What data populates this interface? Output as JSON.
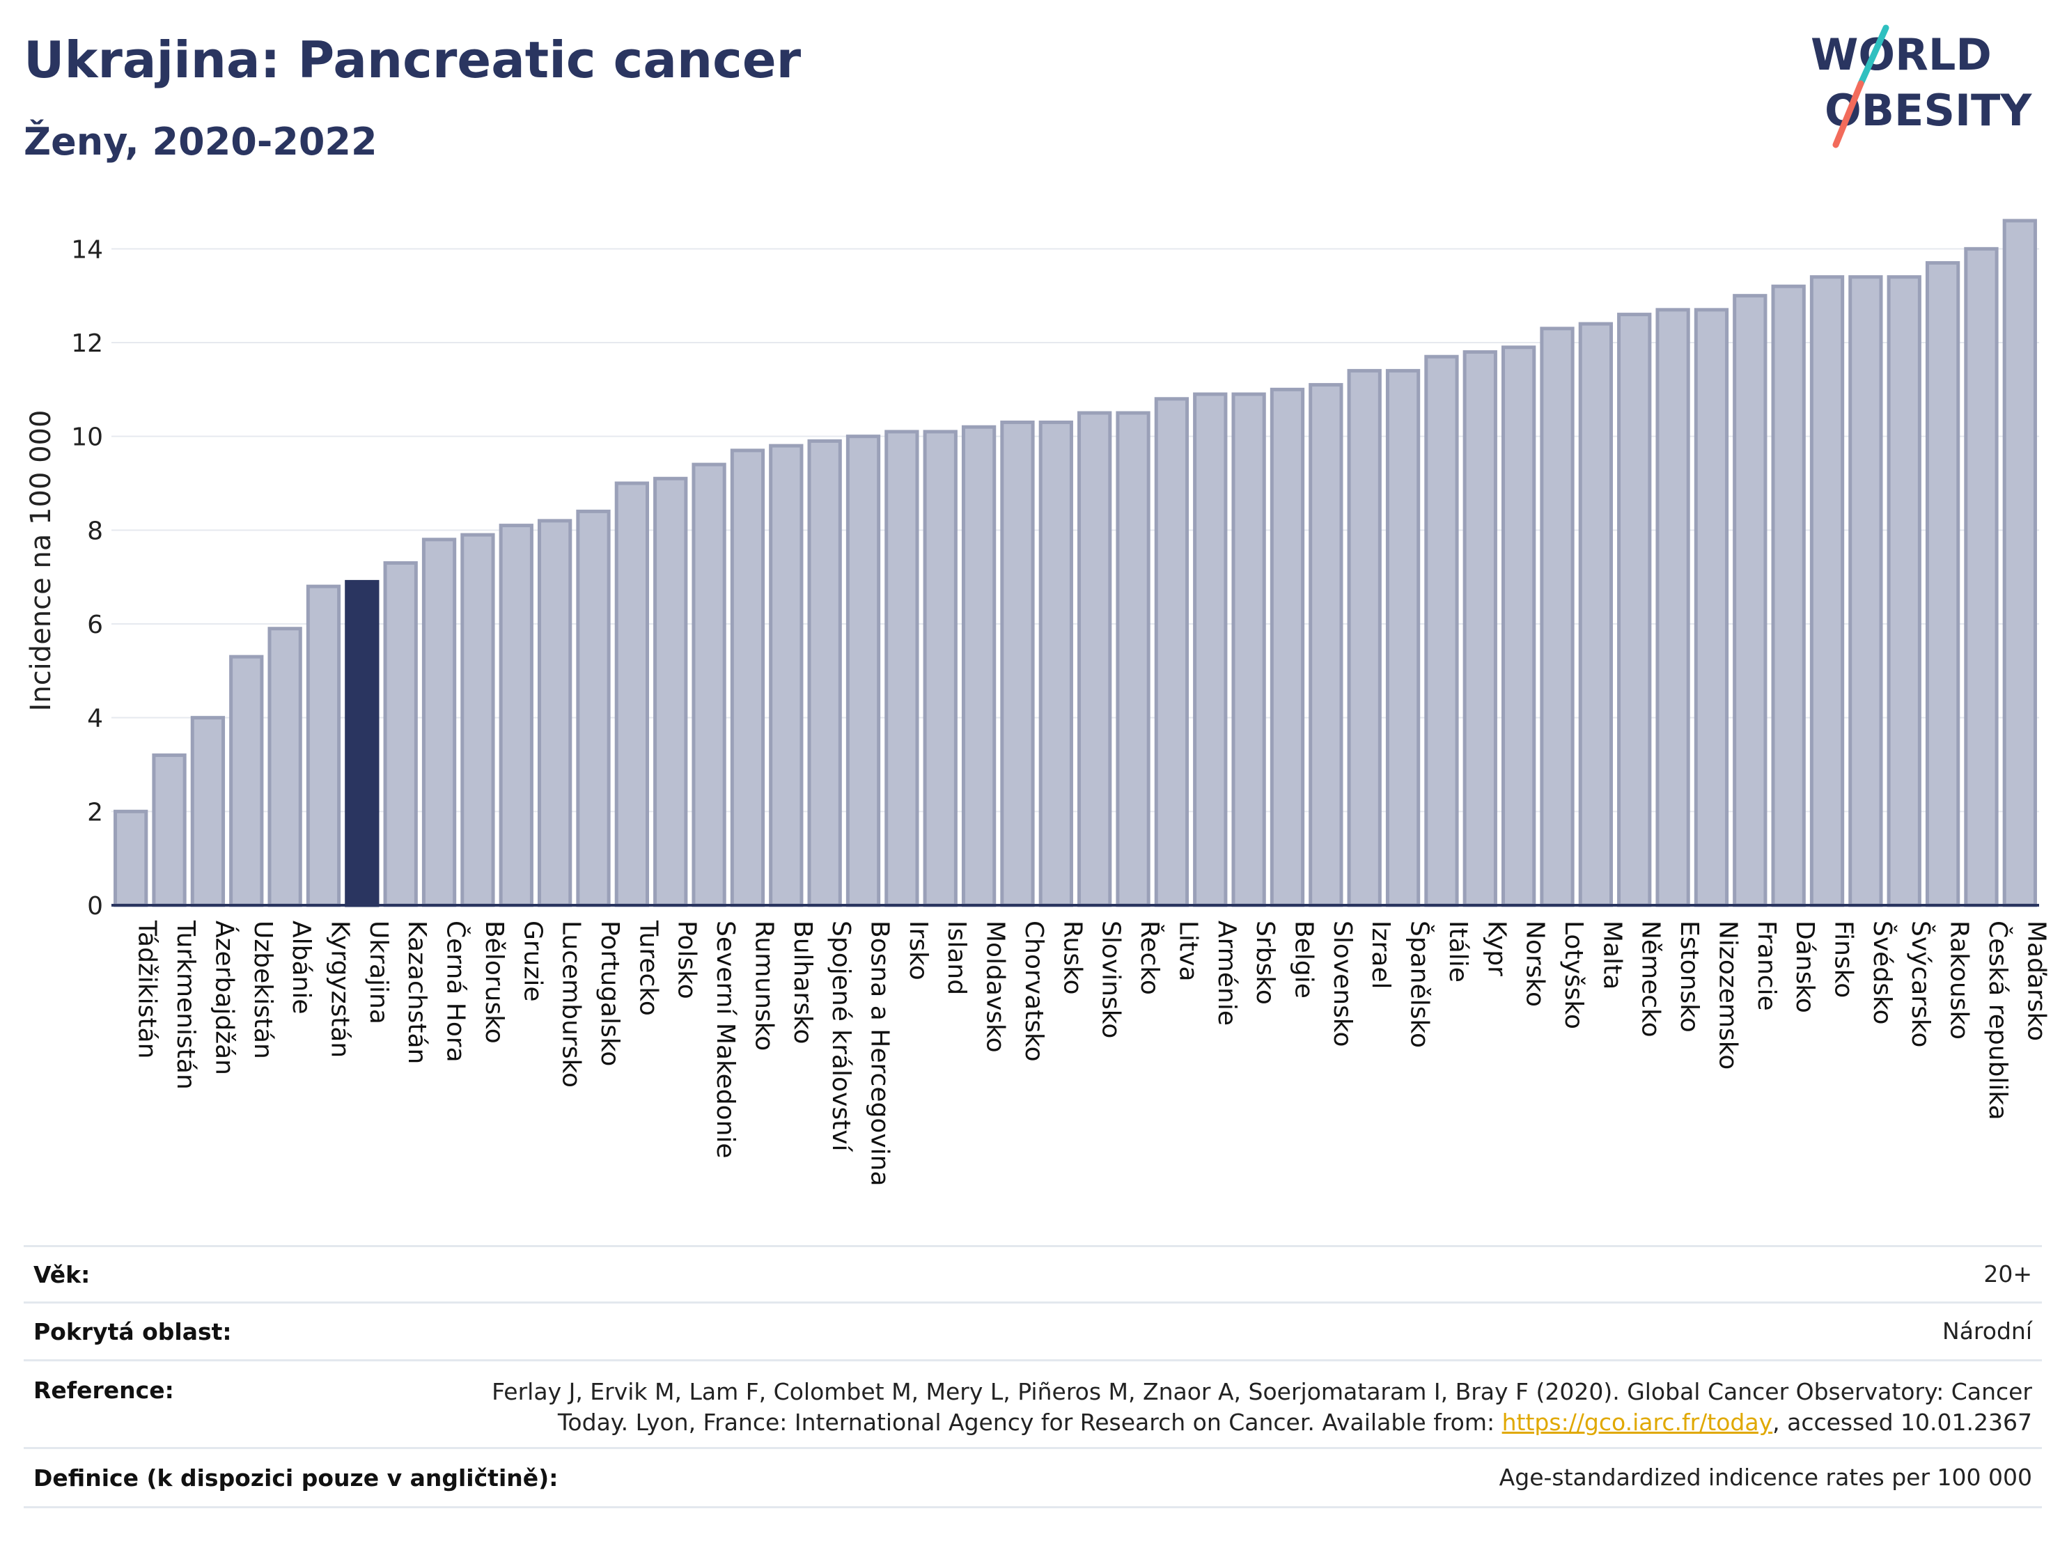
{
  "header": {
    "title": "Ukrajina: Pancreatic cancer",
    "subtitle": "Ženy, 2020-2022"
  },
  "logo": {
    "line1": "WORLD",
    "line2": "OBESITY",
    "colors": {
      "text": "#2a3560",
      "teal": "#2fc0c0",
      "coral": "#f26b5b"
    }
  },
  "colors": {
    "bar": "#babfd1",
    "bar_stroke": "#9aa0b8",
    "highlight": "#2a3560",
    "grid": "#e6e9ef",
    "axis": "#2a3560"
  },
  "chart_data": {
    "type": "bar",
    "title": "",
    "xlabel": "",
    "ylabel": "Incidence na 100 000",
    "ylim": [
      0,
      15
    ],
    "yticks": [
      0,
      2,
      4,
      6,
      8,
      10,
      12,
      14
    ],
    "grid": true,
    "highlight": "Ukrajina",
    "categories": [
      "Tádžikistán",
      "Turkmenistán",
      "Ázerbajdžán",
      "Uzbekistán",
      "Albánie",
      "Kyrgyzstán",
      "Ukrajina",
      "Kazachstán",
      "Černá Hora",
      "Bělorusko",
      "Gruzie",
      "Lucembursko",
      "Portugalsko",
      "Turecko",
      "Polsko",
      "Severní Makedonie",
      "Rumunsko",
      "Bulharsko",
      "Spojené království",
      "Bosna a Hercegovina",
      "Irsko",
      "Island",
      "Moldavsko",
      "Chorvatsko",
      "Rusko",
      "Slovinsko",
      "Řecko",
      "Litva",
      "Arménie",
      "Srbsko",
      "Belgie",
      "Slovensko",
      "Izrael",
      "Španělsko",
      "Itálie",
      "Kypr",
      "Norsko",
      "Lotyšsko",
      "Malta",
      "Německo",
      "Estonsko",
      "Nizozemsko",
      "Francie",
      "Dánsko",
      "Finsko",
      "Švédsko",
      "Švýcarsko",
      "Rakousko",
      "Česká republika",
      "Maďarsko"
    ],
    "values": [
      2.0,
      3.2,
      4.0,
      5.3,
      5.9,
      6.8,
      6.9,
      7.3,
      7.8,
      7.9,
      8.1,
      8.2,
      8.4,
      9.0,
      9.1,
      9.4,
      9.7,
      9.8,
      9.9,
      10.0,
      10.1,
      10.1,
      10.2,
      10.3,
      10.3,
      10.5,
      10.5,
      10.8,
      10.9,
      10.9,
      11.0,
      11.1,
      11.4,
      11.4,
      11.7,
      11.8,
      11.9,
      12.3,
      12.4,
      12.6,
      12.7,
      12.7,
      13.0,
      13.2,
      13.4,
      13.4,
      13.4,
      13.7,
      14.0,
      14.6
    ]
  },
  "info": {
    "rows": [
      {
        "key": "Věk:",
        "value": "20+"
      },
      {
        "key": "Pokrytá oblast:",
        "value": "Národní"
      },
      {
        "key": "Reference:",
        "value_line1": "Ferlay J, Ervik M, Lam F, Colombet M, Mery L, Piñeros M, Znaor A, Soerjomataram I, Bray F (2020). Global Cancer Observatory: Cancer",
        "value_line2_pre": "Today. Lyon, France: International Agency for Research on Cancer. Available from: ",
        "link_text": "https://gco.iarc.fr/today",
        "value_line2_post": ", accessed 10.01.2367"
      },
      {
        "key": "Definice (k dispozici pouze v angličtině):",
        "value": "Age-standardized indicence rates per 100 000"
      }
    ]
  }
}
